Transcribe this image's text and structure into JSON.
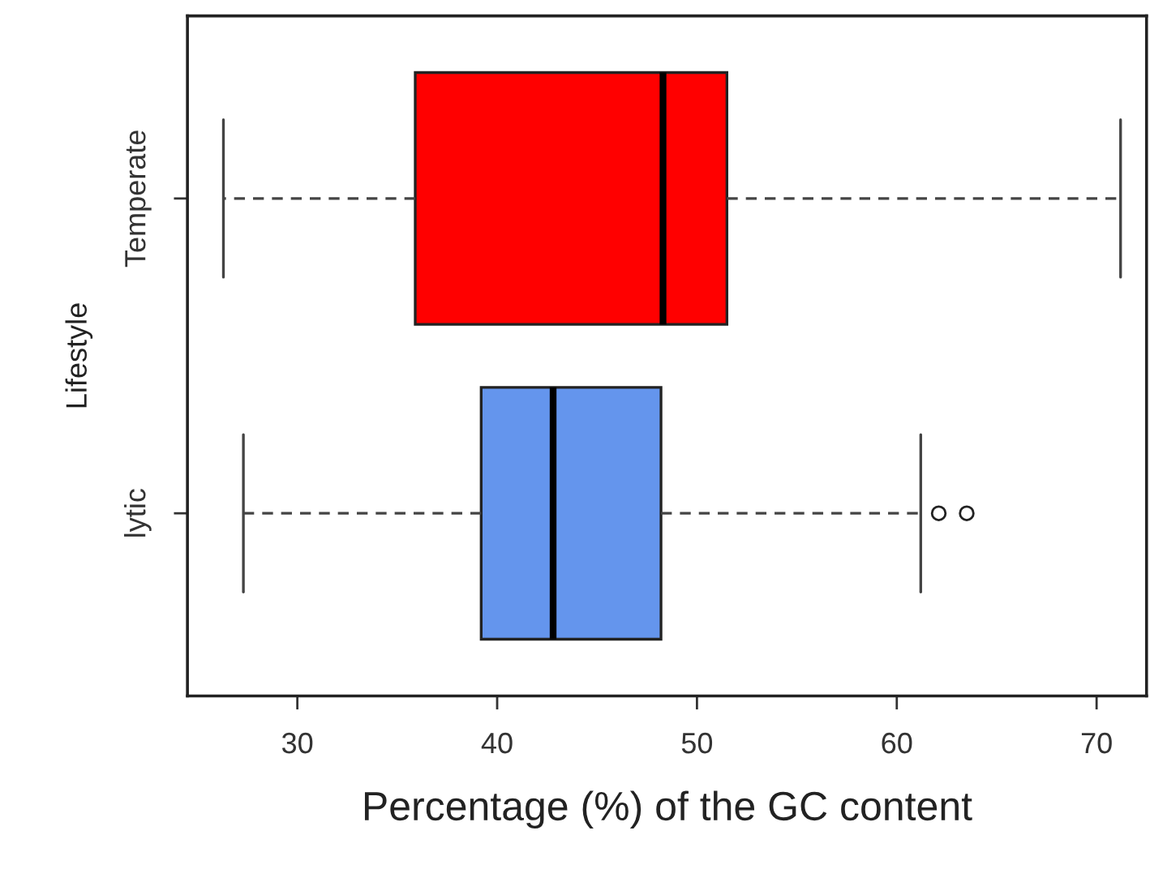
{
  "chart_data": {
    "type": "box",
    "orientation": "horizontal",
    "xlabel": "Percentage (%) of the GC content",
    "ylabel": "Lifestyle",
    "categories": [
      "Temperate",
      "lytic"
    ],
    "colors": [
      "#ff0000",
      "#6495ed"
    ],
    "boxes": [
      {
        "low": 26.3,
        "q1": 35.9,
        "median": 48.3,
        "q3": 51.5,
        "high": 71.2
      },
      {
        "low": 27.3,
        "q1": 39.2,
        "median": 42.8,
        "q3": 48.2,
        "high": 61.2,
        "outliers": [
          62.1,
          63.5
        ]
      }
    ],
    "xlim": [
      24.5,
      72.5
    ],
    "xticks": [
      30,
      40,
      50,
      60,
      70
    ],
    "grid": false,
    "legend": false
  }
}
